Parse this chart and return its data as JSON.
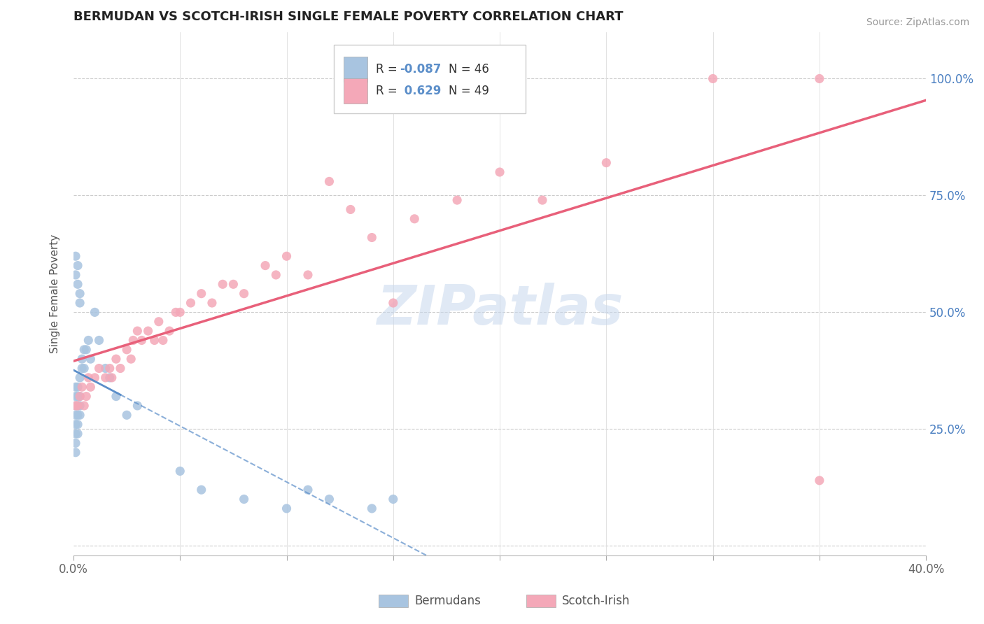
{
  "title": "BERMUDAN VS SCOTCH-IRISH SINGLE FEMALE POVERTY CORRELATION CHART",
  "source_text": "Source: ZipAtlas.com",
  "ylabel": "Single Female Poverty",
  "xlim": [
    0.0,
    0.4
  ],
  "ylim": [
    -0.02,
    1.1
  ],
  "xticks": [
    0.0,
    0.05,
    0.1,
    0.15,
    0.2,
    0.25,
    0.3,
    0.35,
    0.4
  ],
  "ytick_positions": [
    0.0,
    0.25,
    0.5,
    0.75,
    1.0
  ],
  "ytick_labels": [
    "",
    "25.0%",
    "50.0%",
    "75.0%",
    "100.0%"
  ],
  "bermudans_R": -0.087,
  "bermudans_N": 46,
  "scotch_irish_R": 0.629,
  "scotch_irish_N": 49,
  "blue_color": "#a8c4e0",
  "pink_color": "#f4a8b8",
  "blue_line_color": "#5b8ec9",
  "pink_line_color": "#e8607a",
  "watermark": "ZIPatlas",
  "watermark_color": "#c8d8ed",
  "bermudans_x": [
    0.001,
    0.001,
    0.001,
    0.001,
    0.001,
    0.001,
    0.001,
    0.001,
    0.002,
    0.002,
    0.002,
    0.002,
    0.002,
    0.002,
    0.003,
    0.003,
    0.003,
    0.003,
    0.004,
    0.004,
    0.005,
    0.005,
    0.006,
    0.007,
    0.008,
    0.01,
    0.012,
    0.015,
    0.017,
    0.02,
    0.025,
    0.03,
    0.05,
    0.06,
    0.08,
    0.1,
    0.11,
    0.12,
    0.14,
    0.15,
    0.001,
    0.001,
    0.002,
    0.002,
    0.003,
    0.003
  ],
  "bermudans_y": [
    0.3,
    0.32,
    0.34,
    0.28,
    0.26,
    0.24,
    0.22,
    0.2,
    0.3,
    0.32,
    0.34,
    0.28,
    0.26,
    0.24,
    0.3,
    0.32,
    0.28,
    0.36,
    0.38,
    0.4,
    0.38,
    0.42,
    0.42,
    0.44,
    0.4,
    0.5,
    0.44,
    0.38,
    0.36,
    0.32,
    0.28,
    0.3,
    0.16,
    0.12,
    0.1,
    0.08,
    0.12,
    0.1,
    0.08,
    0.1,
    0.58,
    0.62,
    0.6,
    0.56,
    0.54,
    0.52
  ],
  "scotch_irish_x": [
    0.001,
    0.002,
    0.003,
    0.004,
    0.005,
    0.006,
    0.007,
    0.008,
    0.01,
    0.012,
    0.015,
    0.017,
    0.018,
    0.02,
    0.022,
    0.025,
    0.027,
    0.028,
    0.03,
    0.032,
    0.035,
    0.038,
    0.04,
    0.042,
    0.045,
    0.048,
    0.05,
    0.055,
    0.06,
    0.065,
    0.07,
    0.075,
    0.08,
    0.09,
    0.095,
    0.1,
    0.11,
    0.12,
    0.13,
    0.14,
    0.15,
    0.16,
    0.18,
    0.2,
    0.22,
    0.25,
    0.3,
    0.35,
    0.35
  ],
  "scotch_irish_y": [
    0.3,
    0.3,
    0.32,
    0.34,
    0.3,
    0.32,
    0.36,
    0.34,
    0.36,
    0.38,
    0.36,
    0.38,
    0.36,
    0.4,
    0.38,
    0.42,
    0.4,
    0.44,
    0.46,
    0.44,
    0.46,
    0.44,
    0.48,
    0.44,
    0.46,
    0.5,
    0.5,
    0.52,
    0.54,
    0.52,
    0.56,
    0.56,
    0.54,
    0.6,
    0.58,
    0.62,
    0.58,
    0.78,
    0.72,
    0.66,
    0.52,
    0.7,
    0.74,
    0.8,
    0.74,
    0.82,
    1.0,
    0.14,
    1.0
  ]
}
